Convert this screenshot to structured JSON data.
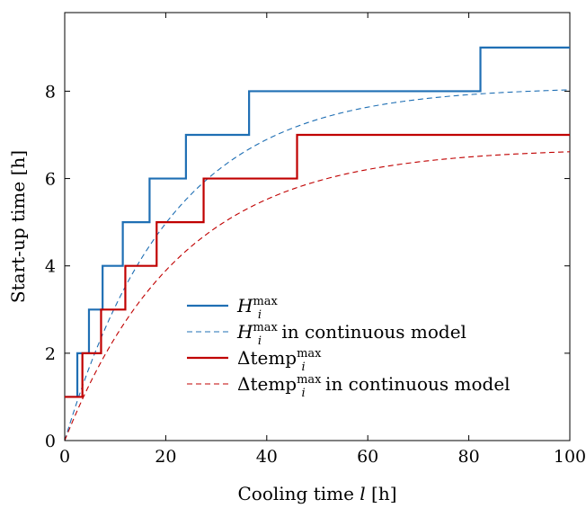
{
  "chart_data": {
    "type": "line",
    "xlabel": "Cooling time l [h]",
    "ylabel": "Start-up time [h]",
    "xlim": [
      0,
      100
    ],
    "ylim": [
      0,
      9.8
    ],
    "xticks": [
      0,
      20,
      40,
      60,
      80,
      100
    ],
    "yticks": [
      0,
      2,
      4,
      6,
      8
    ],
    "grid": false,
    "legend_position": "bottom-right",
    "series": [
      {
        "name": "H_i^max",
        "style": "step-solid",
        "color": "#1f6fb4",
        "x": [
          0,
          2.5,
          2.5,
          4.8,
          4.8,
          7.5,
          7.5,
          11.5,
          11.5,
          16.8,
          16.8,
          24,
          24,
          36.5,
          36.5,
          82.3,
          82.3,
          100
        ],
        "y": [
          1,
          1,
          2,
          2,
          3,
          3,
          4,
          4,
          5,
          5,
          6,
          6,
          7,
          7,
          8,
          8,
          9,
          9
        ]
      },
      {
        "name": "H_i^max in continuous model",
        "style": "dashed",
        "color": "#1f6fb4",
        "function": "8.1*(1-exp(-x/21))",
        "x_range": [
          0,
          100
        ]
      },
      {
        "name": "Δtemp_i^max",
        "style": "step-solid",
        "color": "#c00000",
        "x": [
          0,
          3.5,
          3.5,
          7.2,
          7.2,
          12,
          12,
          18.2,
          18.2,
          27.5,
          27.5,
          46,
          46,
          100
        ],
        "y": [
          1,
          1,
          2,
          2,
          3,
          3,
          4,
          4,
          5,
          5,
          6,
          6,
          7,
          7
        ]
      },
      {
        "name": "Δtemp_i^max in continuous model",
        "style": "dashed",
        "color": "#c00000",
        "function": "6.7*(1-exp(-x/23))",
        "x_range": [
          0,
          100
        ]
      }
    ],
    "legend": [
      {
        "base": "H",
        "sub": "i",
        "sup": "max",
        "suffix": ""
      },
      {
        "base": "H",
        "sub": "i",
        "sup": "max",
        "suffix": " in continuous model"
      },
      {
        "base": "Δtemp",
        "sub": "i",
        "sup": "max",
        "suffix": ""
      },
      {
        "base": "Δtemp",
        "sub": "i",
        "sup": "max",
        "suffix": " in continuous model"
      }
    ]
  }
}
